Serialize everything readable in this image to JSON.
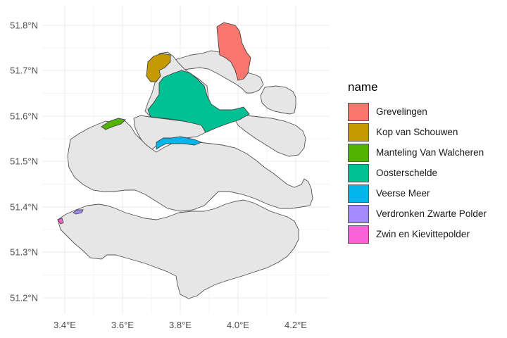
{
  "map": {
    "x_ticks": [
      "3.4°E",
      "3.6°E",
      "3.8°E",
      "4.0°E",
      "4.2°E"
    ],
    "y_ticks": [
      "51.8°N",
      "51.7°N",
      "51.6°N",
      "51.5°N",
      "51.4°N",
      "51.3°N",
      "51.2°N"
    ],
    "background_fill": "#e6e6e6",
    "border_color": "#555555"
  },
  "legend": {
    "title": "name",
    "items": [
      {
        "label": "Grevelingen",
        "color": "#F8766D"
      },
      {
        "label": "Kop van Schouwen",
        "color": "#C49A00"
      },
      {
        "label": "Manteling Van Walcheren",
        "color": "#53B400"
      },
      {
        "label": "Oosterschelde",
        "color": "#00C094"
      },
      {
        "label": "Veerse Meer",
        "color": "#00B6EB"
      },
      {
        "label": "Verdronken Zwarte Polder",
        "color": "#A58AFF"
      },
      {
        "label": "Zwin en Kievittepolder",
        "color": "#FB61D7"
      }
    ]
  }
}
